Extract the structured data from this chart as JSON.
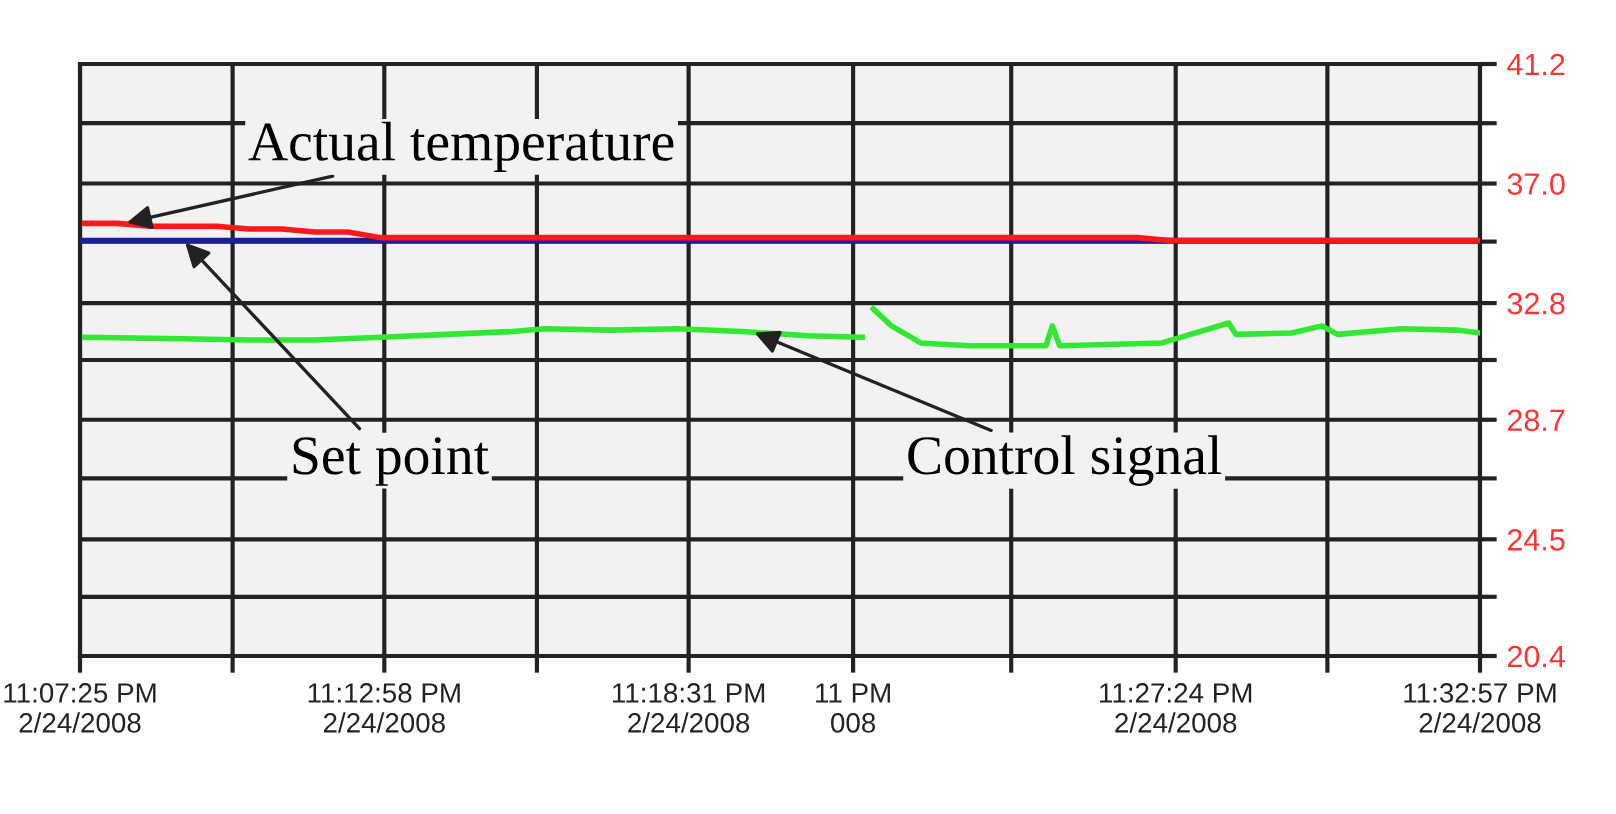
{
  "chart_data": {
    "type": "line",
    "xlim": [
      "2008-02-24T23:07:25",
      "2008-02-24T23:32:57"
    ],
    "ylim": [
      20.4,
      41.2
    ],
    "xticks": [
      {
        "value": "2008-02-24T23:07:25",
        "label": "11:07:25 PM\n2/24/2008"
      },
      {
        "value": "2008-02-24T23:10:12",
        "label": null
      },
      {
        "value": "2008-02-24T23:12:58",
        "label": "11:12:58 PM\n2/24/2008"
      },
      {
        "value": "2008-02-24T23:15:45",
        "label": null
      },
      {
        "value": "2008-02-24T23:18:31",
        "label": "11:18:31 PM\n2/24/2008"
      },
      {
        "value": "2008-02-24T23:21:31",
        "label": "11 PM\n008"
      },
      {
        "value": "2008-02-24T23:24:24",
        "label": null
      },
      {
        "value": "2008-02-24T23:27:24",
        "label": "11:27:24 PM\n2/24/2008"
      },
      {
        "value": "2008-02-24T23:30:10",
        "label": null
      },
      {
        "value": "2008-02-24T23:32:57",
        "label": "11:32:57 PM\n2/24/2008"
      }
    ],
    "yticks": [
      {
        "value": 20.4,
        "label": "20.4"
      },
      {
        "value": 22.48,
        "label": null
      },
      {
        "value": 24.5,
        "label": "24.5"
      },
      {
        "value": 26.64,
        "label": null
      },
      {
        "value": 28.7,
        "label": "28.7"
      },
      {
        "value": 30.8,
        "label": null
      },
      {
        "value": 32.8,
        "label": "32.8"
      },
      {
        "value": 34.96,
        "label": null
      },
      {
        "value": 37.0,
        "label": "37.0"
      },
      {
        "value": 39.12,
        "label": null
      },
      {
        "value": 41.2,
        "label": "41.2"
      }
    ],
    "grid": true,
    "line_style": "solid",
    "marker": "none",
    "series": [
      {
        "color": "#1c1ca8",
        "x": [
          "2008-02-24T23:07:25",
          "2008-02-24T23:12:00",
          "2008-02-24T23:18:00",
          "2008-02-24T23:24:00",
          "2008-02-24T23:30:00",
          "2008-02-24T23:32:57"
        ],
        "values": [
          35.0,
          35.0,
          35.0,
          35.0,
          35.0,
          35.0
        ]
      },
      {
        "color": "#ff1a1a",
        "x": [
          "2008-02-24T23:07:30",
          "2008-02-24T23:08:06",
          "2008-02-24T23:08:42",
          "2008-02-24T23:09:18",
          "2008-02-24T23:09:54",
          "2008-02-24T23:10:30",
          "2008-02-24T23:11:06",
          "2008-02-24T23:11:42",
          "2008-02-24T23:12:18",
          "2008-02-24T23:12:54",
          "2008-02-24T23:18:00",
          "2008-02-24T23:26:42",
          "2008-02-24T23:27:18",
          "2008-02-24T23:32:57"
        ],
        "values": [
          35.6,
          35.6,
          35.5,
          35.5,
          35.5,
          35.4,
          35.4,
          35.3,
          35.3,
          35.1,
          35.1,
          35.1,
          35.0,
          35.0
        ]
      },
      {
        "color": "#33e833",
        "x": [
          "2008-02-24T23:07:30",
          "2008-02-24T23:09:18",
          "2008-02-24T23:10:30",
          "2008-02-24T23:11:42",
          "2008-02-24T23:12:54",
          "2008-02-24T23:14:06",
          "2008-02-24T23:15:18",
          "2008-02-24T23:15:54",
          "2008-02-24T23:17:06",
          "2008-02-24T23:18:18",
          "2008-02-24T23:19:30",
          "2008-02-24T23:20:42",
          "2008-02-24T23:21:41",
          "2008-02-24T23:21:47",
          "2008-02-24T23:21:53",
          "2008-02-24T23:22:13",
          "2008-02-24T23:22:45",
          "2008-02-24T23:23:38",
          "2008-02-24T23:25:02",
          "2008-02-24T23:25:09",
          "2008-02-24T23:25:17",
          "2008-02-24T23:27:09",
          "2008-02-24T23:28:22",
          "2008-02-24T23:28:30",
          "2008-02-24T23:29:31",
          "2008-02-24T23:30:04",
          "2008-02-24T23:30:21",
          "2008-02-24T23:31:31",
          "2008-02-24T23:32:31",
          "2008-02-24T23:32:57"
        ],
        "values": [
          31.6,
          31.55,
          31.5,
          31.5,
          31.6,
          31.7,
          31.8,
          31.9,
          31.85,
          31.9,
          31.8,
          31.65,
          31.6,
          null,
          32.6,
          32.0,
          31.4,
          31.3,
          31.3,
          32.0,
          31.3,
          31.4,
          32.1,
          31.7,
          31.75,
          32.0,
          31.7,
          31.9,
          31.85,
          31.75
        ]
      }
    ],
    "annotations": [
      {
        "text": "Actual temperature",
        "x": "2008-02-24T23:08:13",
        "y": 35.6
      },
      {
        "text": "Set point",
        "x": "2008-02-24T23:09:18",
        "y": 35.0
      },
      {
        "text": "Control signal",
        "x": "2008-02-24T23:19:40",
        "y": 31.8
      }
    ]
  }
}
